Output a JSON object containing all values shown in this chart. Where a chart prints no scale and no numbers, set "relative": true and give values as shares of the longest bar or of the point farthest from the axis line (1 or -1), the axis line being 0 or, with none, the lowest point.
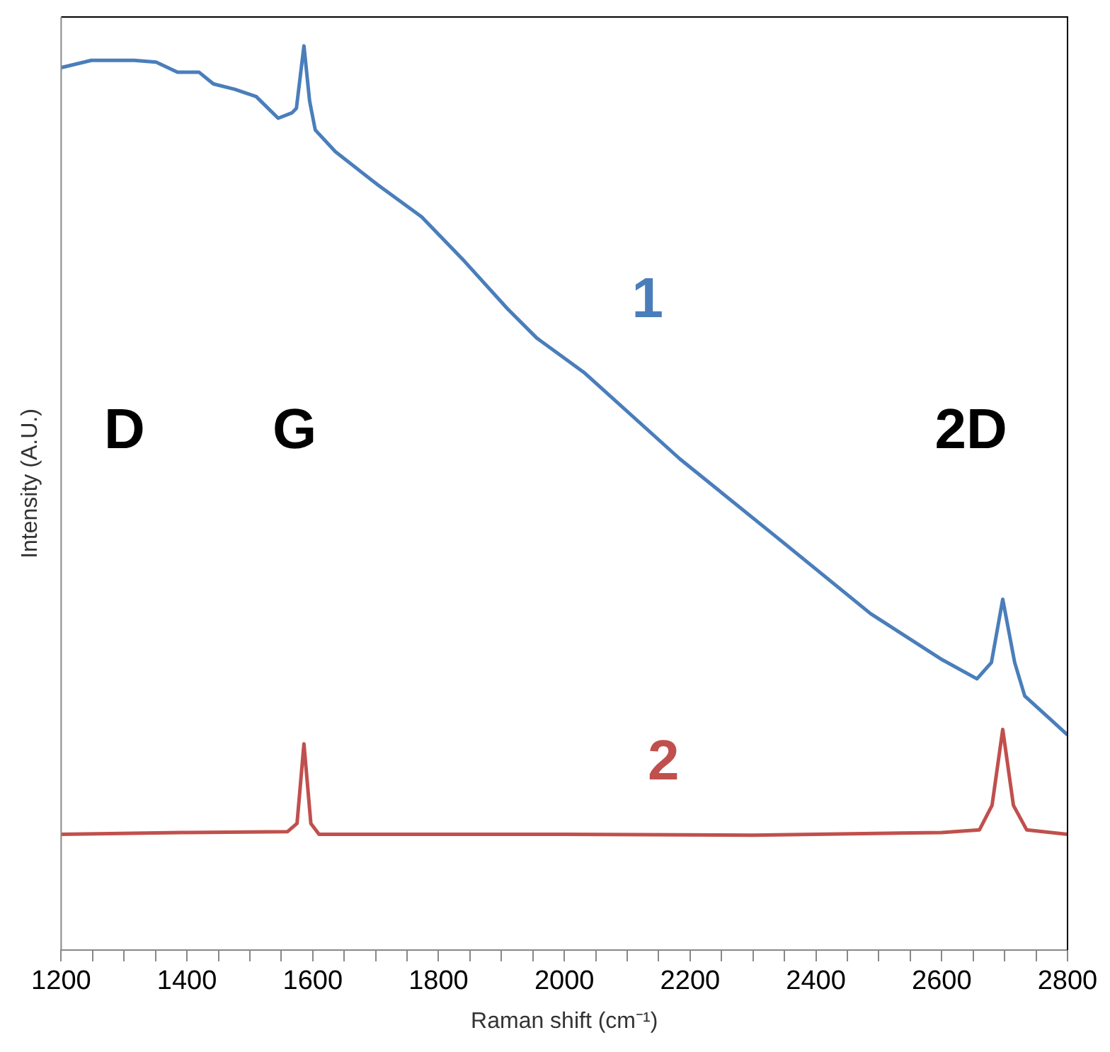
{
  "chart_data": {
    "type": "line",
    "relative": true,
    "xlabel": "Raman shift (cm⁻¹)",
    "ylabel": "Intensity (A.U.)",
    "xlim": [
      1200,
      2800
    ],
    "xticks": [
      1200,
      {
        "value": 1250,
        "label": null
      },
      {
        "value": 1300,
        "label": null
      },
      {
        "value": 1350,
        "label": null
      },
      1400,
      {
        "value": 1450,
        "label": null
      },
      {
        "value": 1500,
        "label": null
      },
      {
        "value": 1550,
        "label": null
      },
      1600,
      {
        "value": 1650,
        "label": null
      },
      {
        "value": 1700,
        "label": null
      },
      {
        "value": 1750,
        "label": null
      },
      1800,
      {
        "value": 1850,
        "label": null
      },
      {
        "value": 1900,
        "label": null
      },
      {
        "value": 1950,
        "label": null
      },
      2000,
      {
        "value": 2050,
        "label": null
      },
      {
        "value": 2100,
        "label": null
      },
      {
        "value": 2150,
        "label": null
      },
      2200,
      {
        "value": 2250,
        "label": null
      },
      {
        "value": 2300,
        "label": null
      },
      {
        "value": 2350,
        "label": null
      },
      2400,
      {
        "value": 2450,
        "label": null
      },
      {
        "value": 2500,
        "label": null
      },
      {
        "value": 2550,
        "label": null
      },
      2600,
      {
        "value": 2650,
        "label": null
      },
      {
        "value": 2700,
        "label": null
      },
      {
        "value": 2750,
        "label": null
      },
      2800
    ],
    "tick_labels": "x",
    "grid": false,
    "legend": false,
    "marker": "none",
    "line_style": "solid",
    "series": [
      {
        "name": "1",
        "color": "#4a7ebb",
        "x": [
          1200,
          1248,
          1316,
          1351,
          1385,
          1419,
          1442,
          1476,
          1510,
          1545,
          1567,
          1574,
          1586,
          1595,
          1604,
          1636,
          1704,
          1773,
          1841,
          1910,
          1956,
          2031,
          2184,
          2337,
          2487,
          2601,
          2656,
          2679,
          2697,
          2716,
          2732,
          2800
        ],
        "values": [
          0.976,
          0.984,
          0.984,
          0.982,
          0.971,
          0.971,
          0.958,
          0.952,
          0.944,
          0.92,
          0.926,
          0.931,
          1.0,
          0.939,
          0.907,
          0.883,
          0.846,
          0.811,
          0.762,
          0.709,
          0.677,
          0.639,
          0.543,
          0.457,
          0.372,
          0.321,
          0.3,
          0.318,
          0.388,
          0.318,
          0.281,
          0.238
        ]
      },
      {
        "name": "2",
        "color": "#c0504d",
        "x": [
          1200,
          1400,
          1560,
          1575,
          1586,
          1597,
          1610,
          1800,
          2000,
          2300,
          2600,
          2660,
          2680,
          2697,
          2714,
          2735,
          2800
        ],
        "values": [
          0.128,
          0.13,
          0.131,
          0.14,
          0.228,
          0.14,
          0.128,
          0.128,
          0.128,
          0.127,
          0.13,
          0.133,
          0.16,
          0.244,
          0.16,
          0.133,
          0.128
        ]
      }
    ],
    "annotations": [
      "D",
      "G",
      "2D"
    ]
  }
}
